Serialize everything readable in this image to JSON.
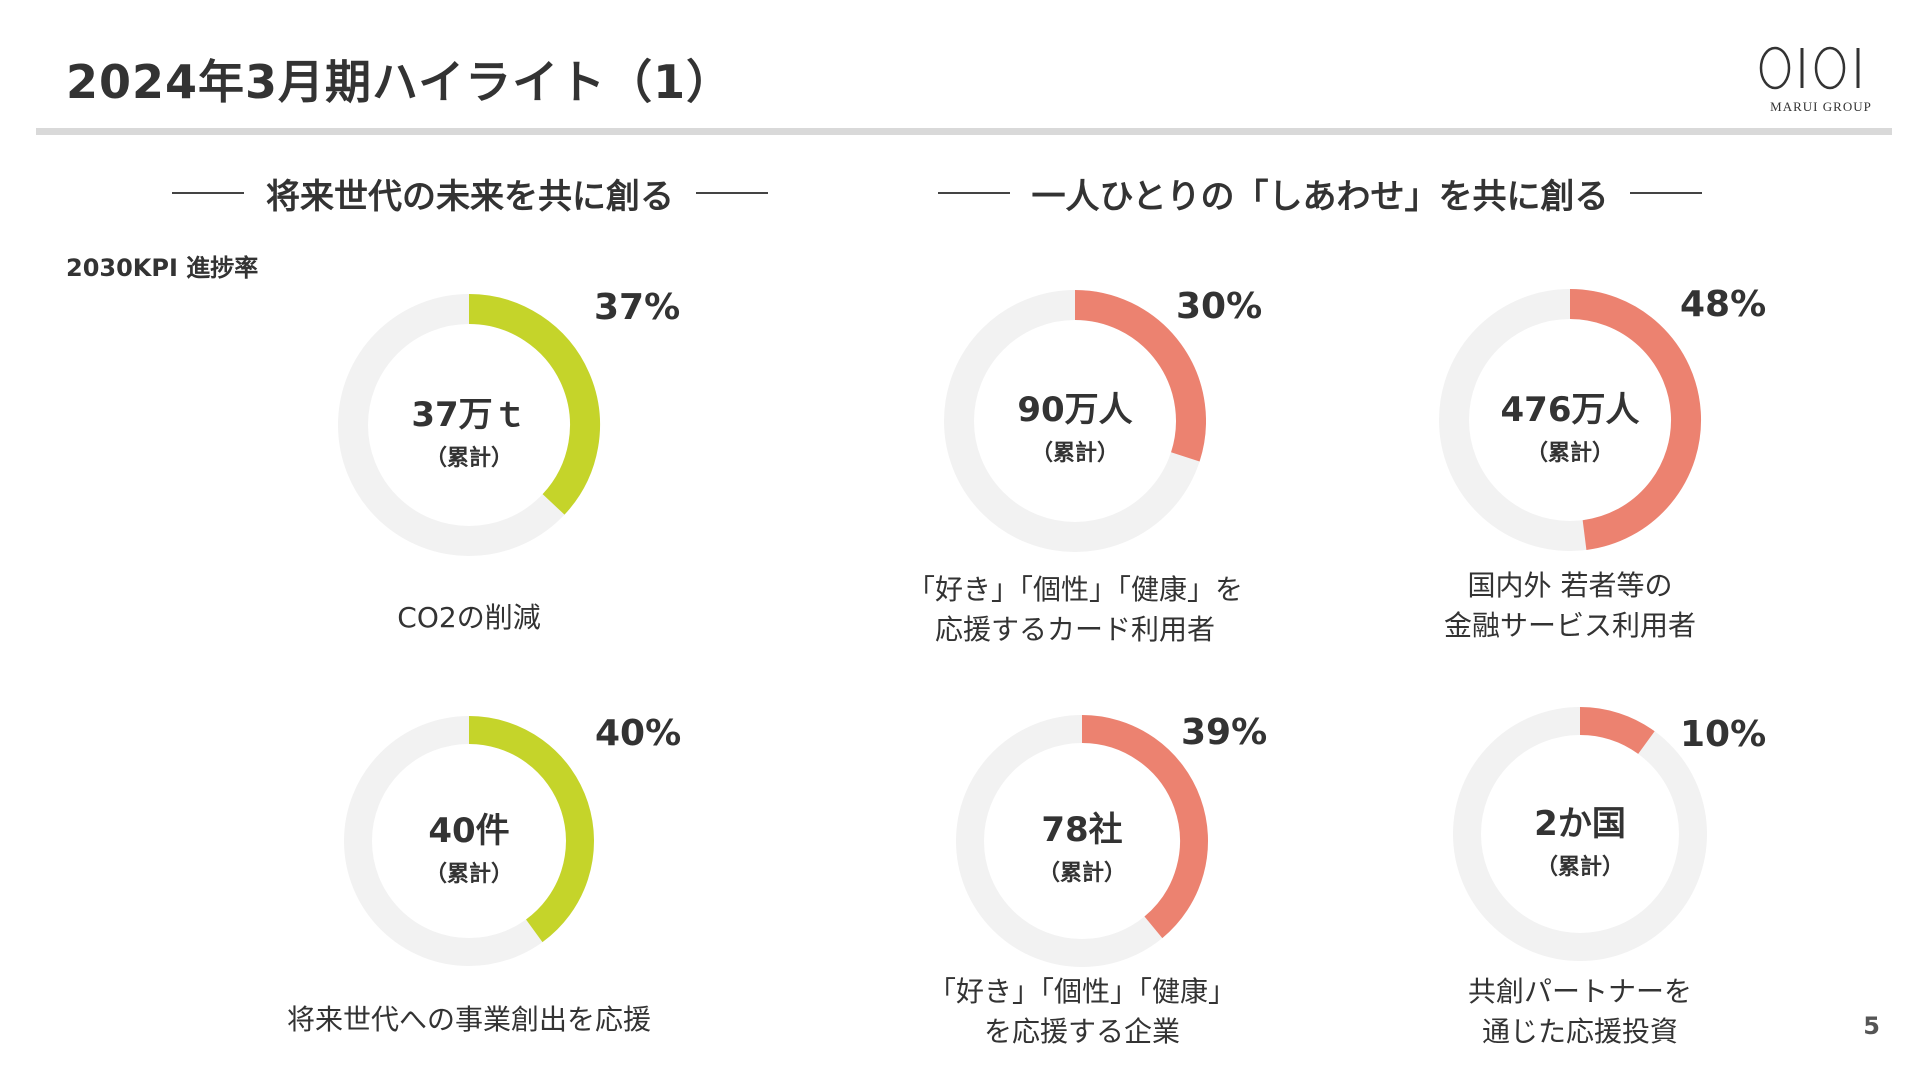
{
  "header": {
    "title": "2024年3月期ハイライト（1）"
  },
  "logo": {
    "mark": "OIOI",
    "name": "MARUI GROUP"
  },
  "sections": {
    "left": {
      "heading": "将来世代の未来を共に創る"
    },
    "right": {
      "heading": "一人ひとりの「しあわせ」を共に創る"
    }
  },
  "kpi_label": "2030KPI 進捗率",
  "colors": {
    "green": "#c5d42a",
    "salmon": "#ec8270",
    "track": "#f2f2f2"
  },
  "chart_data": [
    {
      "type": "pie",
      "variant": "donut",
      "percent": 37,
      "percent_label": "37%",
      "center_value": "37万ｔ",
      "center_sub": "（累計）",
      "caption": [
        "CO2の削減"
      ],
      "color": "green"
    },
    {
      "type": "pie",
      "variant": "donut",
      "percent": 40,
      "percent_label": "40%",
      "center_value": "40件",
      "center_sub": "（累計）",
      "caption": [
        "将来世代への事業創出を応援"
      ],
      "color": "green"
    },
    {
      "type": "pie",
      "variant": "donut",
      "percent": 30,
      "percent_label": "30%",
      "center_value": "90万人",
      "center_sub": "（累計）",
      "caption": [
        "「好き」「個性」「健康」を",
        "応援するカード利用者"
      ],
      "color": "salmon"
    },
    {
      "type": "pie",
      "variant": "donut",
      "percent": 48,
      "percent_label": "48%",
      "center_value": "476万人",
      "center_sub": "（累計）",
      "caption": [
        "国内外 若者等の",
        "金融サービス利用者"
      ],
      "color": "salmon"
    },
    {
      "type": "pie",
      "variant": "donut",
      "percent": 39,
      "percent_label": "39%",
      "center_value": "78社",
      "center_sub": "（累計）",
      "caption": [
        "「好き」「個性」「健康」",
        "を応援する企業"
      ],
      "color": "salmon"
    },
    {
      "type": "pie",
      "variant": "donut",
      "percent": 10,
      "percent_label": "10%",
      "center_value": "2か国",
      "center_sub": "（累計）",
      "caption": [
        "共創パートナーを",
        "通じた応援投資"
      ],
      "color": "salmon"
    }
  ],
  "page_number": "5"
}
